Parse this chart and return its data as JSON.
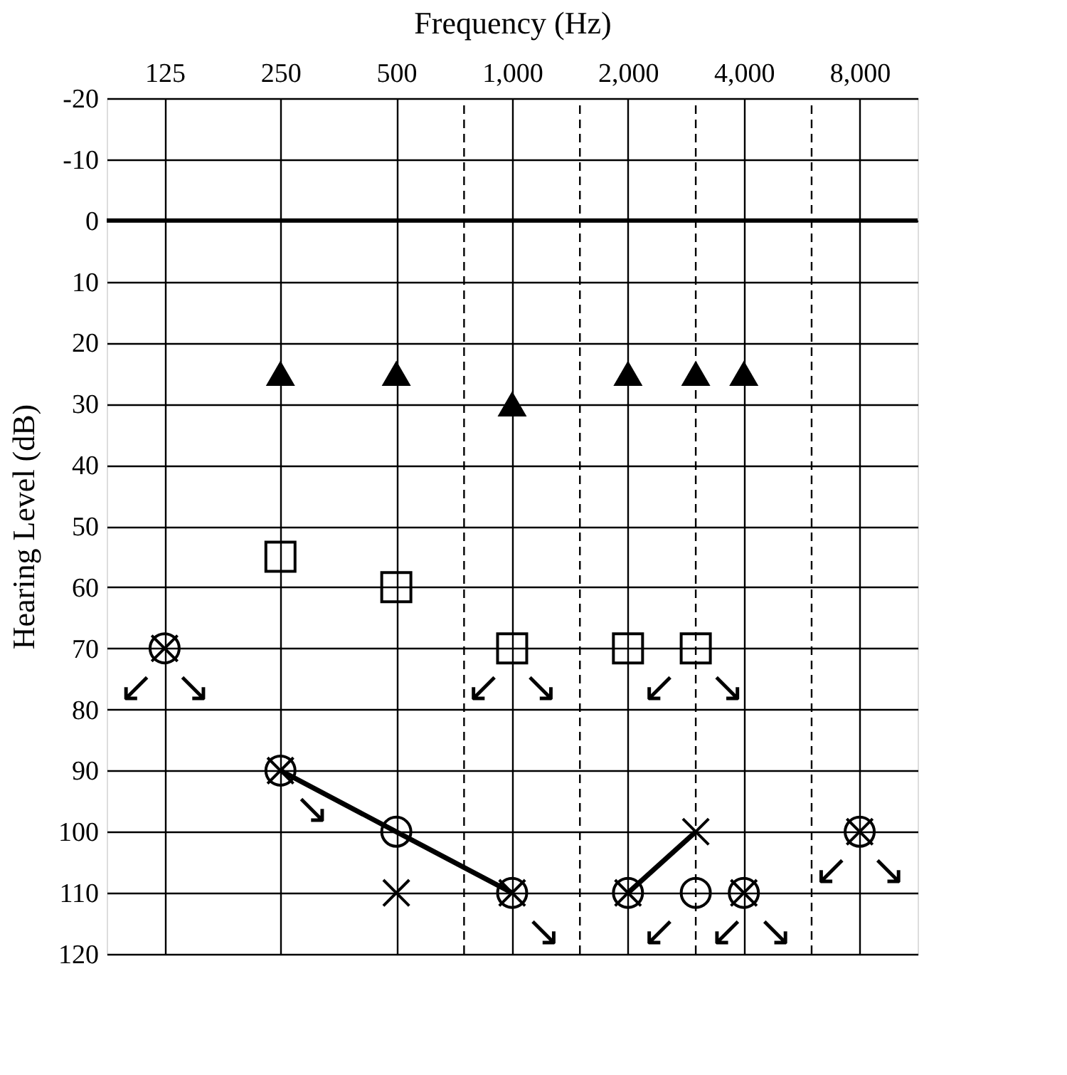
{
  "chart_data": {
    "type": "scatter",
    "xlabel": "Frequency (Hz)",
    "ylabel": "Hearing Level (dB)",
    "log": "x",
    "xlim": [
      88.4,
      11314
    ],
    "ylim": [
      120,
      -20
    ],
    "xticks": [
      {
        "value": 125,
        "label": "125"
      },
      {
        "value": 250,
        "label": "250"
      },
      {
        "value": 500,
        "label": "500"
      },
      {
        "value": 1000,
        "label": "1,000"
      },
      {
        "value": 2000,
        "label": "2,000"
      },
      {
        "value": 4000,
        "label": "4,000"
      },
      {
        "value": 8000,
        "label": "8,000"
      }
    ],
    "yticks": [
      -20,
      -10,
      0,
      10,
      20,
      30,
      40,
      50,
      60,
      70,
      80,
      90,
      100,
      110,
      120
    ],
    "grid": true,
    "series": [
      {
        "marker": "triangle",
        "color": "#000000",
        "x": [
          250,
          500,
          1000,
          2000,
          3000,
          4000
        ],
        "values": [
          25,
          25,
          30,
          25,
          25,
          25
        ]
      },
      {
        "marker": "square",
        "color": "#000000",
        "x": [
          250,
          500,
          1000,
          2000,
          3000
        ],
        "values": [
          55,
          60,
          70,
          70,
          70
        ]
      },
      {
        "marker": "circle",
        "color": "#000000",
        "x": [
          125,
          250,
          500,
          1000,
          2000,
          3000,
          4000,
          8000
        ],
        "values": [
          70,
          90,
          100,
          110,
          110,
          110,
          110,
          100
        ]
      },
      {
        "marker": "cross",
        "color": "#000000",
        "x": [
          125,
          250,
          500,
          1000,
          2000,
          3000,
          4000,
          8000
        ],
        "values": [
          70,
          90,
          110,
          110,
          110,
          100,
          110,
          100
        ]
      },
      {
        "type": "line",
        "marker": "none",
        "line_style": "solid",
        "color": "#000000",
        "x": [
          250,
          500,
          1000,
          1500,
          2000,
          3000
        ],
        "values": [
          90,
          100,
          110,
          null,
          110,
          100
        ]
      }
    ],
    "ref_lines": [
      {
        "axis": "y",
        "value": 0,
        "line_style": "solid",
        "color": "#000000"
      },
      {
        "axis": "x",
        "value": 750,
        "line_style": "dashed",
        "color": "#000000"
      },
      {
        "axis": "x",
        "value": 1500,
        "line_style": "dashed",
        "color": "#000000"
      },
      {
        "axis": "x",
        "value": 3000,
        "line_style": "dashed",
        "color": "#000000"
      },
      {
        "axis": "x",
        "value": 6000,
        "line_style": "dashed",
        "color": "#000000"
      }
    ],
    "annotations": [
      {
        "text": "↙",
        "x": 125,
        "y": 70
      },
      {
        "text": "↘",
        "x": 125,
        "y": 70
      },
      {
        "text": "↘",
        "x": 250,
        "y": 90
      },
      {
        "text": "↙",
        "x": 1000,
        "y": 70
      },
      {
        "text": "↘",
        "x": 1000,
        "y": 70
      },
      {
        "text": "↙",
        "x": 2000,
        "y": 70
      },
      {
        "text": "↘",
        "x": 3000,
        "y": 70
      },
      {
        "text": "↘",
        "x": 1000,
        "y": 110
      },
      {
        "text": "↙",
        "x": 2000,
        "y": 110
      },
      {
        "text": "↙",
        "x": 3000,
        "y": 110
      },
      {
        "text": "↘",
        "x": 4000,
        "y": 110
      },
      {
        "text": "↙",
        "x": 8000,
        "y": 100
      },
      {
        "text": "↘",
        "x": 8000,
        "y": 100
      }
    ]
  }
}
